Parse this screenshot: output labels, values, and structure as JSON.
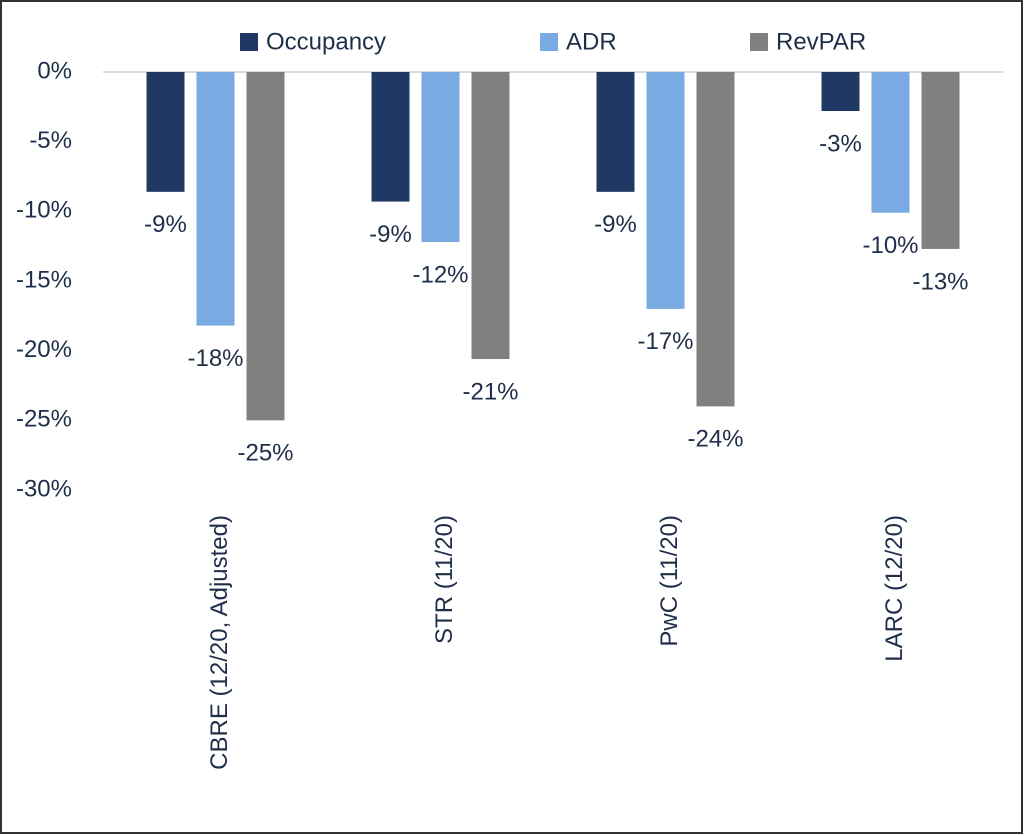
{
  "chart_data": {
    "type": "bar",
    "categories": [
      "CBRE (12/20, Adjusted)",
      "STR (11/20)",
      "PwC (11/20)",
      "LARC (12/20)"
    ],
    "series": [
      {
        "name": "Occupancy",
        "color": "#1f3864",
        "values": [
          -8.6,
          -9.3,
          -8.6,
          -2.8
        ],
        "value_labels": [
          "-9%",
          "-9%",
          "-9%",
          "-3%"
        ]
      },
      {
        "name": "ADR",
        "color": "#7aaae2",
        "values": [
          -18.2,
          -12.2,
          -17.0,
          -10.1
        ],
        "value_labels": [
          "-18%",
          "-12%",
          "-17%",
          "-10%"
        ]
      },
      {
        "name": "RevPAR",
        "color": "#808080",
        "values": [
          -25.0,
          -20.6,
          -24.0,
          -12.7
        ],
        "value_labels": [
          "-25%",
          "-21%",
          "-24%",
          "-13%"
        ]
      }
    ],
    "ylim": [
      -30,
      0
    ],
    "yticks": [
      {
        "value": 0,
        "label": "0%"
      },
      {
        "value": -5,
        "label": "-5%"
      },
      {
        "value": -10,
        "label": "-10%"
      },
      {
        "value": -15,
        "label": "-15%"
      },
      {
        "value": -20,
        "label": "-20%"
      },
      {
        "value": -25,
        "label": "-25%"
      },
      {
        "value": -30,
        "label": "-30%"
      }
    ],
    "legend": "top"
  }
}
